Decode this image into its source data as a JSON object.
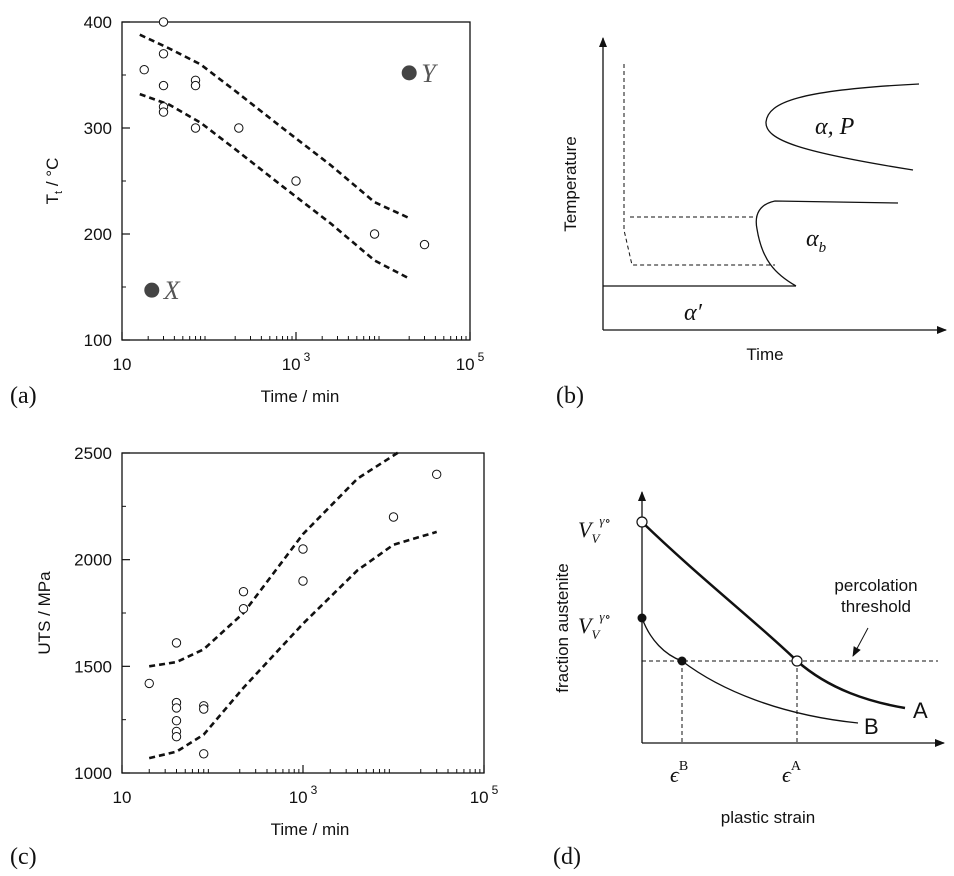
{
  "chart_data": [
    {
      "panel_label": "(a)",
      "type": "scatter",
      "xlabel": "Time / min",
      "ylabel": "T",
      "ylabel_sub": "t",
      "ylabel_unit": " / °C",
      "xscale": "log",
      "xlim": [
        10,
        100000
      ],
      "ylim": [
        100,
        400
      ],
      "x_ticks": [
        {
          "value": 10,
          "base": "10",
          "exp": ""
        },
        {
          "value": 1000,
          "base": "10",
          "exp": "3"
        },
        {
          "value": 100000,
          "base": "10",
          "exp": "5"
        }
      ],
      "y_ticks": [
        100,
        200,
        300,
        400
      ],
      "points": [
        {
          "x": 18,
          "y": 355
        },
        {
          "x": 30,
          "y": 400
        },
        {
          "x": 30,
          "y": 370
        },
        {
          "x": 30,
          "y": 340
        },
        {
          "x": 30,
          "y": 320
        },
        {
          "x": 30,
          "y": 315
        },
        {
          "x": 70,
          "y": 345
        },
        {
          "x": 70,
          "y": 340
        },
        {
          "x": 70,
          "y": 300
        },
        {
          "x": 220,
          "y": 300
        },
        {
          "x": 1000,
          "y": 250
        },
        {
          "x": 8000,
          "y": 200
        },
        {
          "x": 30000,
          "y": 190
        }
      ],
      "envelope_upper": [
        {
          "x": 16,
          "y": 388
        },
        {
          "x": 35,
          "y": 375
        },
        {
          "x": 80,
          "y": 360
        },
        {
          "x": 200,
          "y": 335
        },
        {
          "x": 700,
          "y": 300
        },
        {
          "x": 2500,
          "y": 265
        },
        {
          "x": 8000,
          "y": 230
        },
        {
          "x": 20000,
          "y": 215
        }
      ],
      "envelope_lower": [
        {
          "x": 16,
          "y": 332
        },
        {
          "x": 35,
          "y": 322
        },
        {
          "x": 80,
          "y": 305
        },
        {
          "x": 200,
          "y": 280
        },
        {
          "x": 700,
          "y": 245
        },
        {
          "x": 2500,
          "y": 210
        },
        {
          "x": 8000,
          "y": 175
        },
        {
          "x": 20000,
          "y": 158
        }
      ],
      "markers": [
        {
          "label": "X",
          "x": 22,
          "y": 147
        },
        {
          "label": "Y",
          "x": 20000,
          "y": 352
        }
      ]
    },
    {
      "panel_label": "(b)",
      "type": "diagram",
      "xlabel": "Time",
      "ylabel": "Temperature",
      "regions": [
        {
          "name": "α,  P"
        },
        {
          "name": "α",
          "sub": "b"
        },
        {
          "name": "α′"
        }
      ]
    },
    {
      "panel_label": "(c)",
      "type": "scatter",
      "xlabel": "Time / min",
      "ylabel": "UTS / MPa",
      "xscale": "log",
      "xlim": [
        10,
        100000
      ],
      "ylim": [
        1000,
        2500
      ],
      "x_ticks": [
        {
          "value": 10,
          "base": "10",
          "exp": ""
        },
        {
          "value": 1000,
          "base": "10",
          "exp": "3"
        },
        {
          "value": 100000,
          "base": "10",
          "exp": "5"
        }
      ],
      "y_ticks": [
        1000,
        1500,
        2000,
        2500
      ],
      "points": [
        {
          "x": 20,
          "y": 1420
        },
        {
          "x": 40,
          "y": 1610
        },
        {
          "x": 40,
          "y": 1330
        },
        {
          "x": 40,
          "y": 1305
        },
        {
          "x": 40,
          "y": 1245
        },
        {
          "x": 40,
          "y": 1195
        },
        {
          "x": 40,
          "y": 1170
        },
        {
          "x": 80,
          "y": 1315
        },
        {
          "x": 80,
          "y": 1300
        },
        {
          "x": 80,
          "y": 1090
        },
        {
          "x": 220,
          "y": 1850
        },
        {
          "x": 220,
          "y": 1770
        },
        {
          "x": 1000,
          "y": 2050
        },
        {
          "x": 1000,
          "y": 1900
        },
        {
          "x": 10000,
          "y": 2200
        },
        {
          "x": 30000,
          "y": 2400
        }
      ],
      "envelope_upper": [
        {
          "x": 20,
          "y": 1500
        },
        {
          "x": 40,
          "y": 1520
        },
        {
          "x": 80,
          "y": 1580
        },
        {
          "x": 220,
          "y": 1750
        },
        {
          "x": 1000,
          "y": 2120
        },
        {
          "x": 4000,
          "y": 2380
        },
        {
          "x": 12000,
          "y": 2510
        }
      ],
      "envelope_lower": [
        {
          "x": 20,
          "y": 1070
        },
        {
          "x": 40,
          "y": 1100
        },
        {
          "x": 80,
          "y": 1180
        },
        {
          "x": 220,
          "y": 1400
        },
        {
          "x": 1000,
          "y": 1700
        },
        {
          "x": 4000,
          "y": 1950
        },
        {
          "x": 10000,
          "y": 2070
        },
        {
          "x": 30000,
          "y": 2130
        }
      ]
    },
    {
      "panel_label": "(d)",
      "type": "line",
      "xlabel": "plastic strain",
      "ylabel": "fraction austenite",
      "threshold_label_line1": "percolation",
      "threshold_label_line2": "threshold",
      "series": [
        {
          "name": "A"
        },
        {
          "name": "B"
        }
      ],
      "y_markers": [
        {
          "base": "V",
          "sub": "V",
          "sup": "γ∘"
        },
        {
          "base": "V",
          "sub": "V",
          "sup": "γ∘"
        }
      ],
      "x_markers": [
        {
          "base": "ϵ",
          "sup": "B"
        },
        {
          "base": "ϵ",
          "sup": "A"
        }
      ]
    }
  ]
}
